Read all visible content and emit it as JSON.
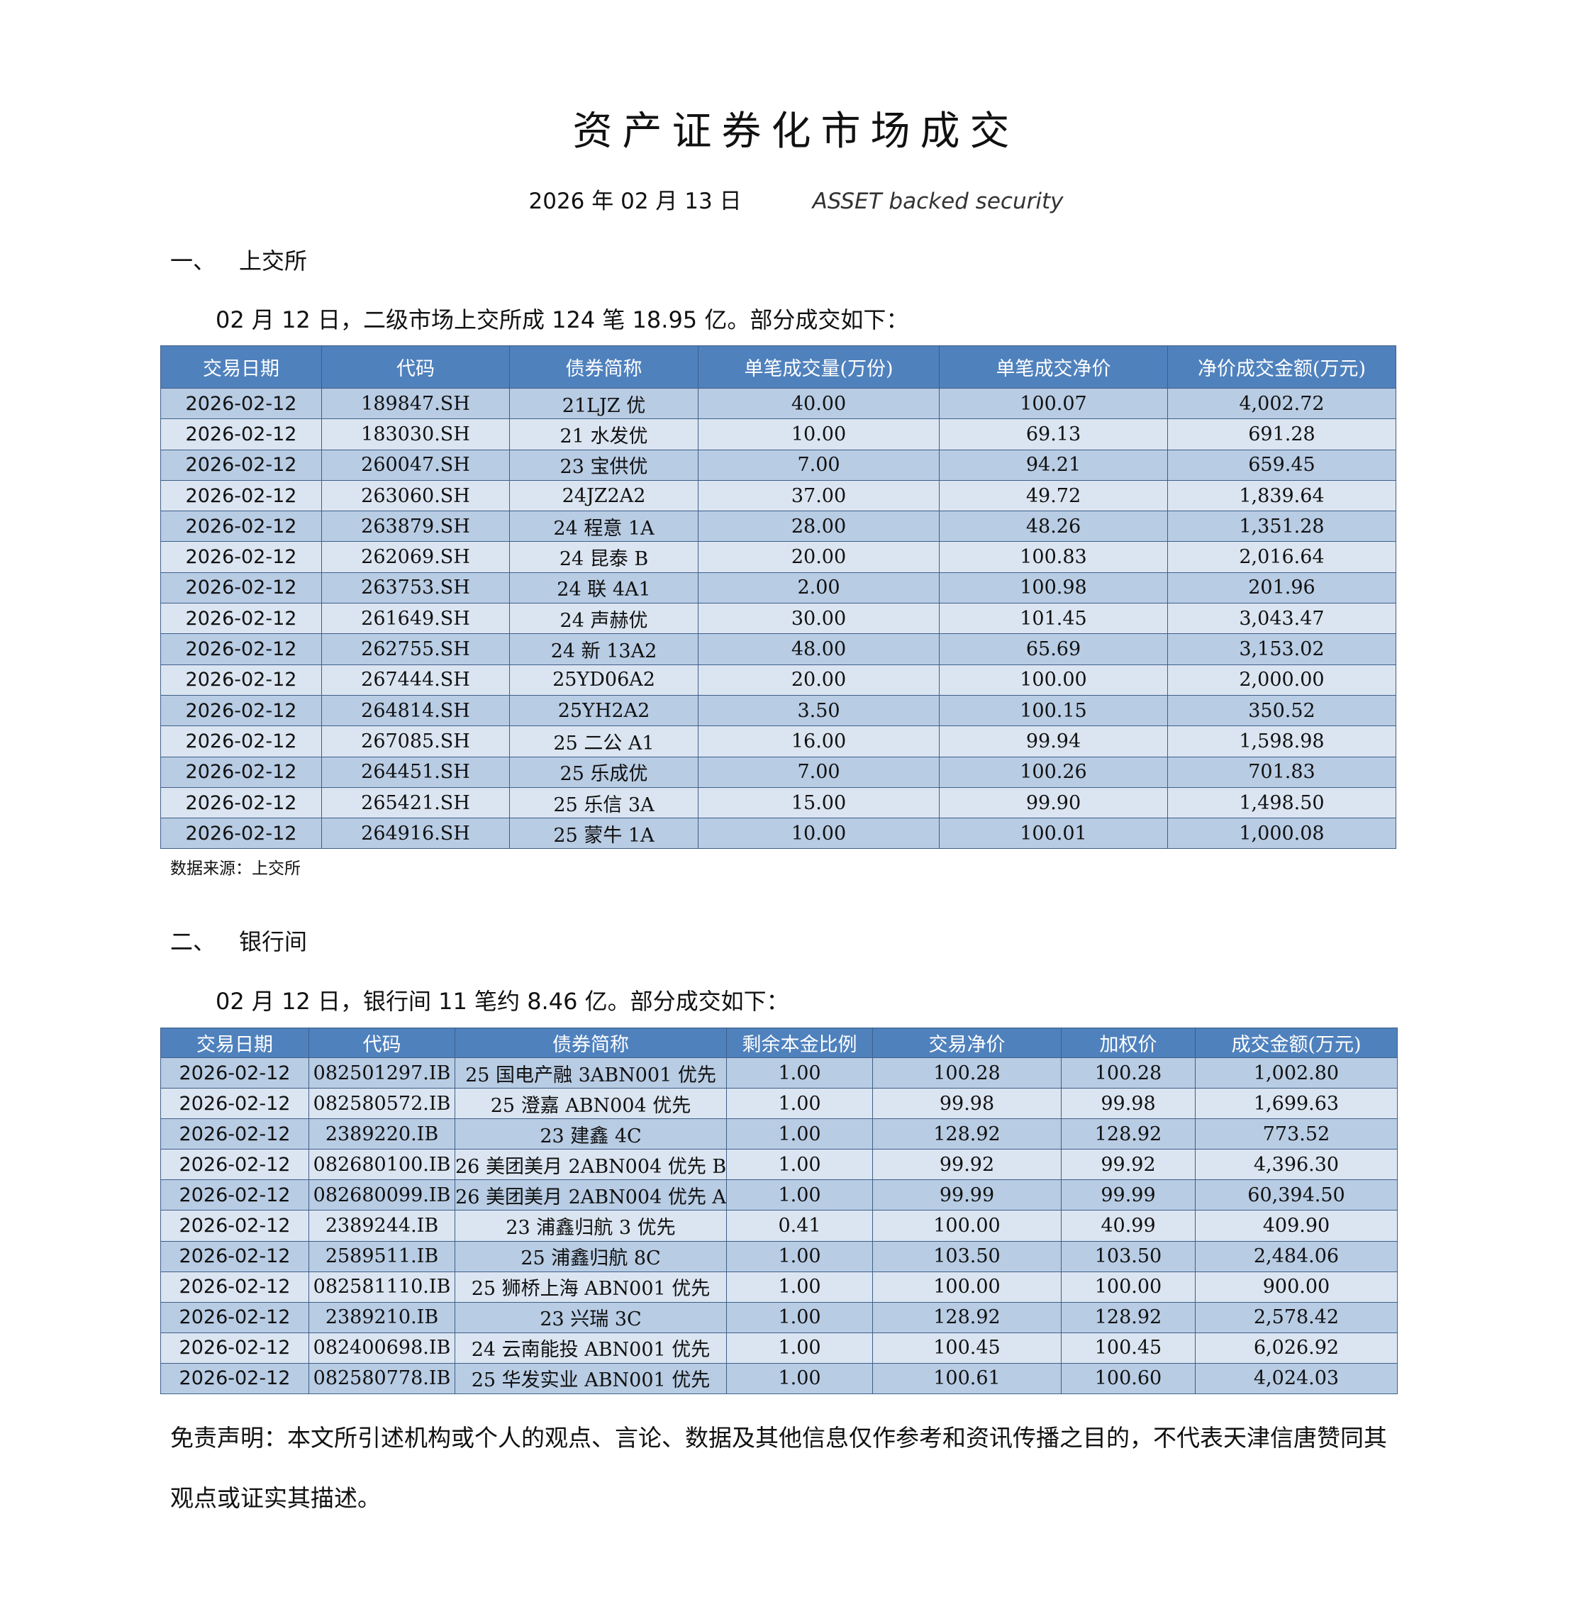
{
  "header": {
    "title": "资产证券化市场成交",
    "date": "2026 年 02 月 13 日",
    "subtitle": "ASSET backed security"
  },
  "sections": [
    {
      "number": "一、",
      "title": "上交所",
      "summary": "02 月 12 日，二级市场上交所成 124 笔 18.95 亿。部分成交如下：",
      "table": {
        "header": [
          "交易日期",
          "代码",
          "债券简称",
          "单笔成交量(万份)",
          "单笔成交净价",
          "净价成交金额(万元)"
        ],
        "rows": [
          [
            "2026-02-12",
            "189847.SH",
            "21LJZ 优",
            "40.00",
            "100.07",
            "4,002.72"
          ],
          [
            "2026-02-12",
            "183030.SH",
            "21 水发优",
            "10.00",
            "69.13",
            "691.28"
          ],
          [
            "2026-02-12",
            "260047.SH",
            "23 宝供优",
            "7.00",
            "94.21",
            "659.45"
          ],
          [
            "2026-02-12",
            "263060.SH",
            "24JZ2A2",
            "37.00",
            "49.72",
            "1,839.64"
          ],
          [
            "2026-02-12",
            "263879.SH",
            "24 程意 1A",
            "28.00",
            "48.26",
            "1,351.28"
          ],
          [
            "2026-02-12",
            "262069.SH",
            "24 昆泰 B",
            "20.00",
            "100.83",
            "2,016.64"
          ],
          [
            "2026-02-12",
            "263753.SH",
            "24 联 4A1",
            "2.00",
            "100.98",
            "201.96"
          ],
          [
            "2026-02-12",
            "261649.SH",
            "24 声赫优",
            "30.00",
            "101.45",
            "3,043.47"
          ],
          [
            "2026-02-12",
            "262755.SH",
            "24 新 13A2",
            "48.00",
            "65.69",
            "3,153.02"
          ],
          [
            "2026-02-12",
            "267444.SH",
            "25YD06A2",
            "20.00",
            "100.00",
            "2,000.00"
          ],
          [
            "2026-02-12",
            "264814.SH",
            "25YH2A2",
            "3.50",
            "100.15",
            "350.52"
          ],
          [
            "2026-02-12",
            "267085.SH",
            "25 二公 A1",
            "16.00",
            "99.94",
            "1,598.98"
          ],
          [
            "2026-02-12",
            "264451.SH",
            "25 乐成优",
            "7.00",
            "100.26",
            "701.83"
          ],
          [
            "2026-02-12",
            "265421.SH",
            "25 乐信 3A",
            "15.00",
            "99.90",
            "1,498.50"
          ],
          [
            "2026-02-12",
            "264916.SH",
            "25 蒙牛 1A",
            "10.00",
            "100.01",
            "1,000.08"
          ]
        ]
      },
      "source": "数据来源：上交所"
    },
    {
      "number": "二、",
      "title": "银行间",
      "summary": "02 月 12 日，银行间 11 笔约 8.46 亿。部分成交如下：",
      "table": {
        "header": [
          "交易日期",
          "代码",
          "债券简称",
          "剩余本金比例",
          "交易净价",
          "加权价",
          "成交金额(万元)"
        ],
        "rows": [
          [
            "2026-02-12",
            "082501297.IB",
            "25 国电产融 3ABN001 优先",
            "1.00",
            "100.28",
            "100.28",
            "1,002.80"
          ],
          [
            "2026-02-12",
            "082580572.IB",
            "25 澄嘉 ABN004 优先",
            "1.00",
            "99.98",
            "99.98",
            "1,699.63"
          ],
          [
            "2026-02-12",
            "2389220.IB",
            "23 建鑫 4C",
            "1.00",
            "128.92",
            "128.92",
            "773.52"
          ],
          [
            "2026-02-12",
            "082680100.IB",
            "26 美团美月 2ABN004 优先 B",
            "1.00",
            "99.92",
            "99.92",
            "4,396.30"
          ],
          [
            "2026-02-12",
            "082680099.IB",
            "26 美团美月 2ABN004 优先 A",
            "1.00",
            "99.99",
            "99.99",
            "60,394.50"
          ],
          [
            "2026-02-12",
            "2389244.IB",
            "23 浦鑫归航 3 优先",
            "0.41",
            "100.00",
            "40.99",
            "409.90"
          ],
          [
            "2026-02-12",
            "2589511.IB",
            "25 浦鑫归航 8C",
            "1.00",
            "103.50",
            "103.50",
            "2,484.06"
          ],
          [
            "2026-02-12",
            "082581110.IB",
            "25 狮桥上海 ABN001 优先",
            "1.00",
            "100.00",
            "100.00",
            "900.00"
          ],
          [
            "2026-02-12",
            "2389210.IB",
            "23 兴瑞 3C",
            "1.00",
            "128.92",
            "128.92",
            "2,578.42"
          ],
          [
            "2026-02-12",
            "082400698.IB",
            "24 云南能投 ABN001 优先",
            "1.00",
            "100.45",
            "100.45",
            "6,026.92"
          ],
          [
            "2026-02-12",
            "082580778.IB",
            "25 华发实业 ABN001 优先",
            "1.00",
            "100.61",
            "100.60",
            "4,024.03"
          ]
        ]
      }
    }
  ],
  "disclaimer": "免责声明：本文所引述机构或个人的观点、言论、数据及其他信息仅作参考和资讯传播之目的，不代表天津信唐赞同其观点或证实其描述。"
}
